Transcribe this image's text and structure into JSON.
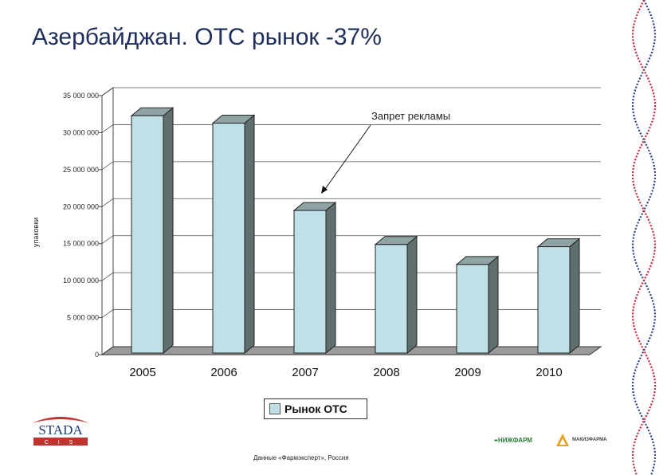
{
  "slide": {
    "title": "Азербайджан. ОТС рынок -37%",
    "source": "Данные «Фармэксперт», Россия"
  },
  "logos": {
    "stada_name": "STADA",
    "stada_sub": "C I S",
    "nizhpharm": "НИЖФАРМ",
    "makiz": "МАКИЗФАРМА"
  },
  "colors": {
    "bar_front": "#bfe0e6",
    "bar_side": "#5f6e6e",
    "bar_top": "#90a4a6",
    "title": "#1f2f5c"
  },
  "chart_data": {
    "type": "bar",
    "categories": [
      "2005",
      "2006",
      "2007",
      "2008",
      "2009",
      "2010"
    ],
    "series": [
      {
        "name": "Рынок ОТС",
        "values": [
          32500000,
          31500000,
          19700000,
          15100000,
          12400000,
          14800000
        ]
      }
    ],
    "xlabel": "",
    "ylabel": "упаковки",
    "ylim": [
      0,
      35000000
    ],
    "yticks": [
      0,
      5000000,
      10000000,
      15000000,
      20000000,
      25000000,
      30000000,
      35000000
    ],
    "ytick_labels": [
      "0",
      "5 000 000",
      "10 000 000",
      "15 000 000",
      "20 000 000",
      "25 000 000",
      "30 000 000",
      "35 000 000"
    ],
    "legend_position": "bottom",
    "grid": true,
    "annotation": {
      "text": "Запрет рекламы",
      "target_category": "2007"
    }
  }
}
